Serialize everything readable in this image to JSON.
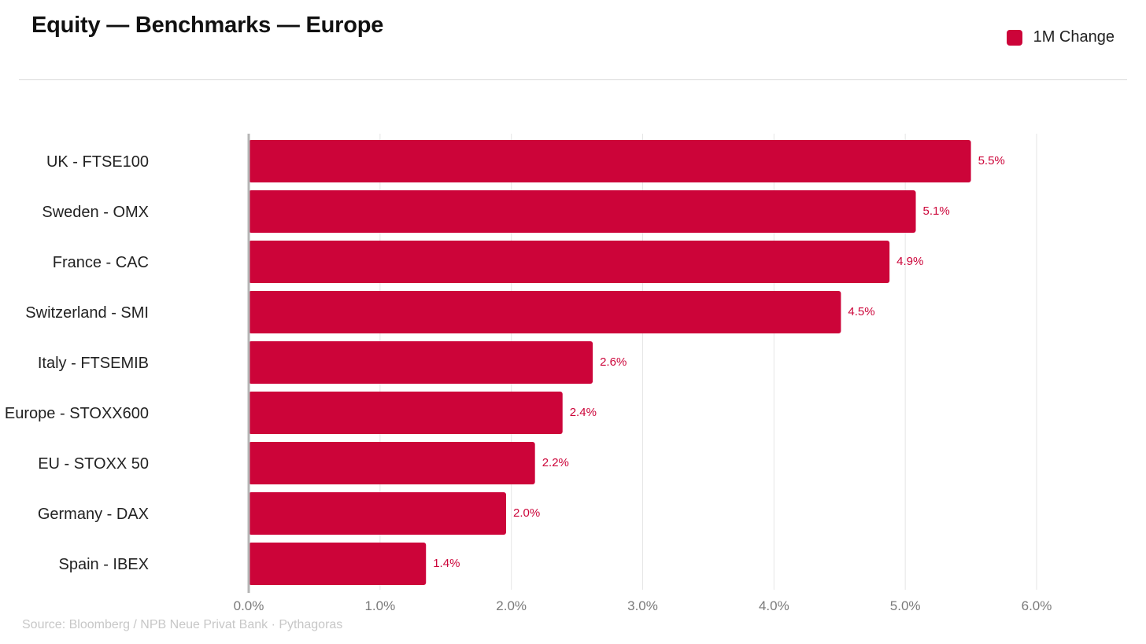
{
  "title": "Equity — Benchmarks — Europe",
  "source": "Source: Bloomberg / NPB Neue Privat Bank · Pythagoras",
  "colors": {
    "bar": "#cc0439",
    "grid": "#e6e6e6",
    "baseline": "#b5b5b5",
    "category_text": "#222222",
    "tick_text": "#7a7a7a"
  },
  "chart_data": {
    "type": "bar",
    "orientation": "horizontal",
    "legend_position": "top-right",
    "grid": true,
    "xlim": [
      0,
      6
    ],
    "ticks": [
      0,
      1,
      2,
      3,
      4,
      5,
      6
    ],
    "tick_labels": [
      "0.0%",
      "1.0%",
      "2.0%",
      "3.0%",
      "4.0%",
      "5.0%",
      "6.0%"
    ],
    "categories": [
      "UK - FTSE100",
      "Sweden - OMX",
      "France - CAC",
      "Switzerland - SMI",
      "Italy - FTSEMIB",
      "Europe - STOXX600",
      "EU - STOXX 50",
      "Germany - DAX",
      "Spain - IBEX"
    ],
    "series": [
      {
        "name": "1M Change",
        "values": [
          5.5,
          5.08,
          4.88,
          4.51,
          2.62,
          2.39,
          2.18,
          1.96,
          1.35
        ],
        "data_labels": [
          "5.5%",
          "5.1%",
          "4.9%",
          "4.5%",
          "2.6%",
          "2.4%",
          "2.2%",
          "2.0%",
          "1.4%"
        ]
      }
    ]
  }
}
